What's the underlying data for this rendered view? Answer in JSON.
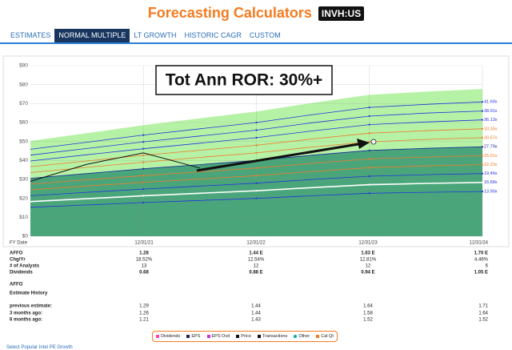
{
  "header": {
    "title": "Forecasting Calculators",
    "ticker": "INVH:US"
  },
  "tabs": [
    "ESTIMATES",
    "NORMAL MULTIPLE",
    "LT GROWTH",
    "HISTORIC CAGR",
    "CUSTOM"
  ],
  "active_tab": 1,
  "chart_data": {
    "type": "line",
    "annotation": "Tot Ann ROR: 30%+",
    "categories": [
      null,
      null,
      "12/31/21",
      null,
      "12/31/22",
      null,
      "12/31/23",
      null,
      "12/31/24"
    ],
    "ylim": [
      0,
      90
    ],
    "yticks": [
      {
        "value": 0,
        "label": "$0"
      },
      {
        "value": 10,
        "label": "$10"
      },
      {
        "value": 20,
        "label": "$20"
      },
      {
        "value": 30,
        "label": "$30"
      },
      {
        "value": 40,
        "label": "$40"
      },
      {
        "value": 50,
        "label": "$50"
      },
      {
        "value": 60,
        "label": "$60"
      },
      {
        "value": 70,
        "label": "$70"
      },
      {
        "value": 80,
        "label": "$80"
      },
      {
        "value": 90,
        "label": "$90"
      }
    ],
    "grid": true,
    "upper_area": {
      "color": "#b6f2a6",
      "values": [
        50.3,
        54.4,
        58.6,
        62.2,
        65.8,
        70.4,
        74.6,
        76.3,
        77.7
      ]
    },
    "base_area": {
      "color": "#4aa67a",
      "series": 5
    },
    "series": [
      {
        "label": "41.69x",
        "color": "#2233dd",
        "values": [
          45.9,
          49.6,
          53.4,
          56.7,
          60.0,
          64.2,
          68.0,
          69.6,
          70.9
        ]
      },
      {
        "label": "38.91x",
        "color": "#2233dd",
        "values": [
          42.8,
          46.3,
          49.8,
          52.9,
          56.0,
          59.9,
          63.4,
          65.0,
          66.1
        ]
      },
      {
        "label": "36.13x",
        "color": "#2233dd",
        "values": [
          39.7,
          43.0,
          46.2,
          49.1,
          52.0,
          55.6,
          58.9,
          60.3,
          61.4
        ]
      },
      {
        "label": "33.35x",
        "color": "#f07a2a",
        "values": [
          36.7,
          39.7,
          42.7,
          45.4,
          48.0,
          51.4,
          54.4,
          55.7,
          56.7
        ]
      },
      {
        "label": "30.57x",
        "color": "#f07a2a",
        "values": [
          33.6,
          36.4,
          39.1,
          41.6,
          44.0,
          47.1,
          49.8,
          51.1,
          52.0
        ]
      },
      {
        "label": "27.79x",
        "color": "#1a2a9a",
        "values": [
          30.6,
          33.1,
          35.6,
          37.8,
          40.0,
          42.8,
          45.3,
          46.4,
          47.2
        ]
      },
      {
        "label": "25.01x",
        "color": "#f07a2a",
        "values": [
          27.5,
          29.8,
          32.0,
          34.0,
          36.0,
          38.5,
          40.8,
          41.8,
          42.5
        ]
      },
      {
        "label": "22.23x",
        "color": "#f07a2a",
        "values": [
          24.5,
          26.5,
          28.5,
          30.2,
          32.0,
          34.2,
          36.2,
          37.1,
          37.8
        ]
      },
      {
        "label": "19.46x",
        "color": "#2233dd",
        "values": [
          21.4,
          23.2,
          24.9,
          26.5,
          28.0,
          30.0,
          31.7,
          32.5,
          33.1
        ]
      },
      {
        "label": "16.68x",
        "color": "#ffffff",
        "values": [
          18.3,
          19.8,
          21.4,
          22.7,
          24.0,
          25.7,
          27.2,
          27.9,
          28.4
        ]
      },
      {
        "label": "13.90x",
        "color": "#2233dd",
        "values": [
          15.3,
          16.5,
          17.8,
          18.9,
          20.0,
          21.4,
          22.7,
          23.2,
          23.6
        ]
      },
      {
        "color": "#111111",
        "values": [
          29,
          38,
          44,
          36,
          null,
          null,
          null,
          null,
          null
        ]
      }
    ]
  },
  "table": {
    "header": [
      "FY Date",
      "12/31/21",
      "12/31/22",
      "12/31/23",
      "12/31/24"
    ],
    "rows": [
      [
        "AFFO",
        "1.28",
        "1.44 E",
        "1.63 E",
        "1.70 E"
      ],
      [
        "Chg/Yr",
        "18.52%",
        "12.54%",
        "12.81%",
        "4.46%"
      ],
      [
        "# of Analysts",
        "13",
        "12",
        "12",
        "6"
      ],
      [
        "Dividends",
        "0.68",
        "0.88 E",
        "0.94 E",
        "1.05 E"
      ]
    ],
    "history_title": [
      "AFFO",
      "Estimate History"
    ],
    "history_rows": [
      [
        "previous estimate:",
        "1.29",
        "1.44",
        "1.64",
        "1.71"
      ],
      [
        "3 months ago:",
        "1.26",
        "1.44",
        "1.58",
        "1.64"
      ],
      [
        "6 months ago:",
        "1.21",
        "1.43",
        "1.52",
        "1.52"
      ]
    ]
  },
  "legend": [
    "Dividends",
    "EPS",
    "EPS Ovd",
    "Price",
    "Transactions",
    "Other",
    "Cal Qt"
  ],
  "footer": "Select Popular Intel PE Growth"
}
